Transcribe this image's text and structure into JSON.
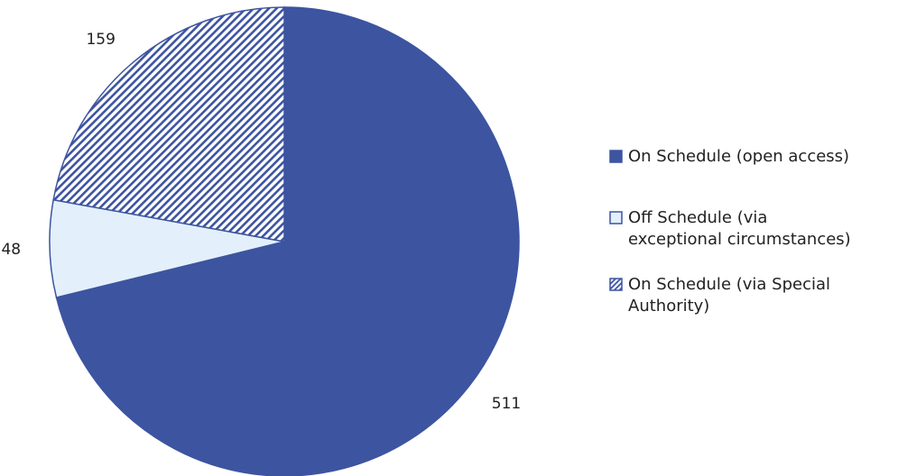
{
  "chart_data": {
    "type": "pie",
    "title": "",
    "series": [
      {
        "label": "On Schedule (open access)",
        "value": 511,
        "fill": "solid",
        "color": "#3d54a0"
      },
      {
        "label": "Off Schedule (via exceptional circumstances)",
        "value": 48,
        "fill": "solid",
        "color": "#e3f0fb"
      },
      {
        "label": "On Schedule (via Special Authority)",
        "value": 159,
        "fill": "diagonal-hatch",
        "color": "#3d54a0"
      }
    ],
    "start_angle": "top (12 o'clock)",
    "direction": "clockwise",
    "legend_position": "right",
    "data_labels": "outside"
  },
  "legend": {
    "items": [
      {
        "lines": [
          "On Schedule (open access)"
        ]
      },
      {
        "lines": [
          "Off Schedule (via",
          "exceptional circumstances)"
        ]
      },
      {
        "lines": [
          "On Schedule (via Special",
          "Authority)"
        ]
      }
    ]
  },
  "colors": {
    "primary": "#3d54a0",
    "light": "#e3f0fb",
    "background": "#ffffff",
    "text": "#222222"
  }
}
